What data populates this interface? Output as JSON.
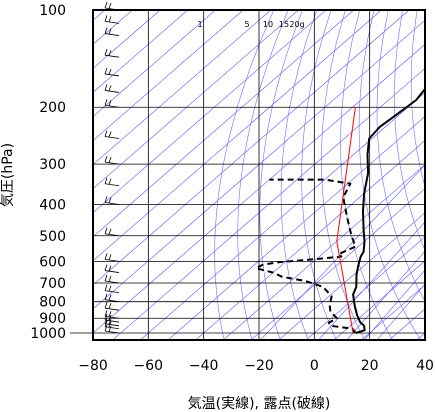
{
  "chart_data": {
    "type": "line",
    "subtype": "skew-T log-P sounding",
    "xlabel": "気温(実線), 露点(破線)",
    "ylabel": "気圧(hPa)",
    "xlim": [
      -80,
      40
    ],
    "ylim": [
      1050,
      100
    ],
    "y_scale": "log",
    "x_ticks": [
      "−80",
      "−60",
      "−40",
      "−20",
      "0",
      "20",
      "40"
    ],
    "x_tick_values": [
      -80,
      -60,
      -40,
      -20,
      0,
      20,
      40
    ],
    "y_ticks": [
      "100",
      "200",
      "300",
      "400",
      "500",
      "600",
      "700",
      "800",
      "900",
      "1000"
    ],
    "y_tick_values": [
      100,
      200,
      300,
      400,
      500,
      600,
      700,
      800,
      900,
      1000
    ],
    "mixing_ratio_labels": [
      "1",
      "5",
      "10",
      "15",
      "20g"
    ],
    "mixing_ratio_values": [
      1,
      5,
      10,
      15,
      20
    ],
    "colors": {
      "temperature": "#000000",
      "dewpoint": "#000000",
      "parcel": "#ff0000",
      "isotherms": "#5a5aff",
      "adiabats": "#6e6eff",
      "grid": "#000000"
    },
    "series": [
      {
        "role": "temperature",
        "style": "solid",
        "points": [
          [
            15,
            1000
          ],
          [
            17,
            980
          ],
          [
            15,
            950
          ],
          [
            12,
            925
          ],
          [
            8,
            880
          ],
          [
            3,
            820
          ],
          [
            -2,
            760
          ],
          [
            -4,
            720
          ],
          [
            -9,
            660
          ],
          [
            -12,
            620
          ],
          [
            -15,
            580
          ],
          [
            -16,
            560
          ],
          [
            -20,
            520
          ],
          [
            -25,
            480
          ],
          [
            -33,
            420
          ],
          [
            -40,
            370
          ],
          [
            -47,
            320
          ],
          [
            -55,
            280
          ],
          [
            -61,
            250
          ],
          [
            -62,
            230
          ],
          [
            -61,
            210
          ],
          [
            -60,
            190
          ],
          [
            -62,
            170
          ],
          [
            -63,
            150
          ],
          [
            -64,
            130
          ],
          [
            -65,
            115
          ],
          [
            -67,
            105
          ],
          [
            -68,
            100
          ]
        ]
      },
      {
        "role": "dewpoint",
        "style": "dashed",
        "points": [
          [
            14,
            1000
          ],
          [
            14,
            990
          ],
          [
            12,
            970
          ],
          [
            3,
            950
          ],
          [
            1,
            930
          ],
          [
            2,
            900
          ],
          [
            -3,
            860
          ],
          [
            -6,
            820
          ],
          [
            -9,
            770
          ],
          [
            -16,
            720
          ],
          [
            -25,
            690
          ],
          [
            -35,
            670
          ],
          [
            -40,
            650
          ],
          [
            -48,
            630
          ],
          [
            -47,
            615
          ],
          [
            -43,
            605
          ],
          [
            -30,
            590
          ],
          [
            -22,
            580
          ],
          [
            -24,
            570
          ],
          [
            -21,
            540
          ],
          [
            -27,
            500
          ],
          [
            -36,
            440
          ],
          [
            -46,
            380
          ],
          [
            -49,
            345
          ],
          [
            -60,
            335
          ],
          [
            -80,
            335
          ]
        ]
      },
      {
        "role": "parcel",
        "style": "solid",
        "points": [
          [
            14,
            1000
          ],
          [
            -30,
            520
          ],
          [
            -79,
            200
          ]
        ]
      }
    ],
    "wind_barbs": {
      "x_position": -70,
      "pressures": [
        1000,
        970,
        950,
        925,
        900,
        850,
        800,
        750,
        700,
        650,
        600,
        500,
        400,
        350,
        300,
        250,
        200,
        180,
        160,
        140,
        120,
        110,
        100
      ]
    },
    "grid": true
  }
}
